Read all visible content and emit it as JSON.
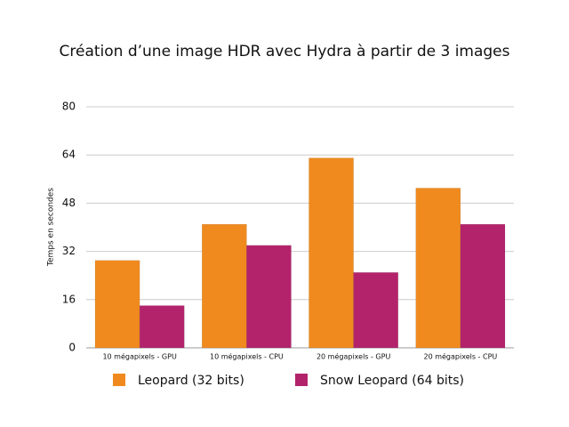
{
  "chart_data": {
    "type": "bar",
    "title": "Création d’une image HDR avec Hydra à partir de 3 images",
    "y_label": "Temps en secondes",
    "categories": [
      "10 mégapixels - GPU",
      "10 mégapixels - CPU",
      "20 mégapixels - GPU",
      "20 mégapixels - CPU"
    ],
    "series": [
      {
        "name": "Leopard (32 bits)",
        "color": "#f08a1e",
        "values": [
          29,
          41,
          63,
          53
        ]
      },
      {
        "name": "Snow Leopard (64 bits)",
        "color": "#b3236b",
        "values": [
          14,
          34,
          25,
          41
        ]
      }
    ],
    "ylim": [
      0,
      80
    ],
    "yticks": [
      0,
      16,
      32,
      48,
      64,
      80
    ],
    "grid": true,
    "legend": "bottom"
  }
}
